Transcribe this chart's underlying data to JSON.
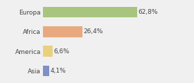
{
  "categories": [
    "Europa",
    "Africa",
    "America",
    "Asia"
  ],
  "values": [
    62.8,
    26.4,
    6.6,
    4.1
  ],
  "labels": [
    "62,8%",
    "26,4%",
    "6,6%",
    "4,1%"
  ],
  "bar_colors": [
    "#a8c47e",
    "#e8a97e",
    "#e8d07e",
    "#7e90c4"
  ],
  "background_color": "#f0f0f0",
  "xlim": [
    0,
    85
  ],
  "label_fontsize": 6.5,
  "cat_fontsize": 6.5,
  "bar_height": 0.55
}
